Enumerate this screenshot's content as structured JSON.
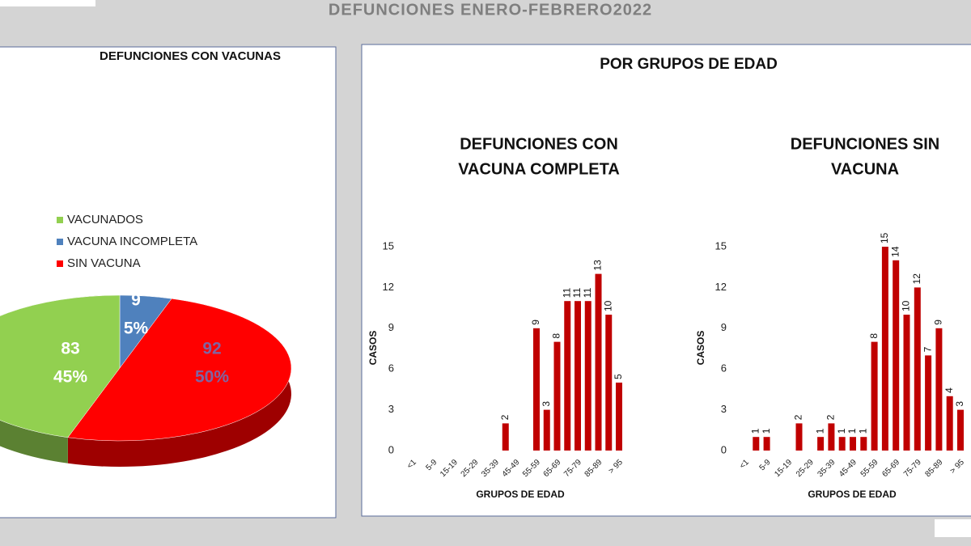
{
  "title": "DEFUNCIONES ENERO-FEBRERO2022",
  "section_title": "POR GRUPOS DE EDAD",
  "chart_data": [
    {
      "type": "pie",
      "title": "DEFUNCIONES CON VACUNAS",
      "categories": [
        "VACUNADOS",
        "VACUNA INCOMPLETA",
        "SIN VACUNA"
      ],
      "values": [
        83,
        9,
        92
      ],
      "percent_labels": [
        "45%",
        "5%",
        "50%"
      ],
      "colors": [
        "#92d050",
        "#4f81bd",
        "#ff0000"
      ],
      "legend": "left"
    },
    {
      "type": "bar",
      "title": [
        "DEFUNCIONES CON",
        "VACUNA COMPLETA"
      ],
      "x_label": "GRUPOS DE EDAD",
      "y_label": "CASOS",
      "categories": [
        "<1",
        null,
        "5-9",
        null,
        "15-19",
        null,
        "25-29",
        null,
        "35-39",
        null,
        "45-49",
        null,
        "55-59",
        null,
        "65-69",
        null,
        "75-79",
        null,
        "85-89",
        null,
        "> 95"
      ],
      "values": [
        null,
        null,
        null,
        null,
        null,
        null,
        null,
        null,
        null,
        2,
        null,
        null,
        9,
        3,
        8,
        11,
        11,
        11,
        13,
        10,
        5
      ],
      "color": "#c00000",
      "ylim": [
        0,
        15
      ],
      "yticks": [
        0,
        3,
        6,
        9,
        12,
        15
      ],
      "grid": false
    },
    {
      "type": "bar",
      "title": [
        "DEFUNCIONES SIN",
        "VACUNA"
      ],
      "x_label": "GRUPOS DE EDAD",
      "y_label": "CASOS",
      "categories": [
        "<1",
        null,
        "5-9",
        null,
        "15-19",
        null,
        "25-29",
        null,
        "35-39",
        null,
        "45-49",
        null,
        "55-59",
        null,
        "65-69",
        null,
        "75-79",
        null,
        "85-89",
        null,
        "> 95"
      ],
      "values": [
        null,
        1,
        1,
        null,
        null,
        2,
        null,
        1,
        2,
        1,
        1,
        1,
        8,
        15,
        14,
        10,
        12,
        7,
        9,
        4,
        3
      ],
      "color": "#c00000",
      "ylim": [
        0,
        15
      ],
      "yticks": [
        0,
        3,
        6,
        9,
        12,
        15
      ],
      "grid": false
    }
  ]
}
